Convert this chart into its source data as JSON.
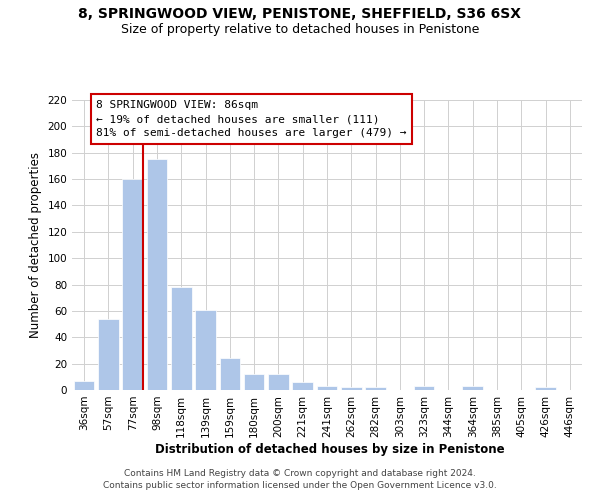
{
  "title": "8, SPRINGWOOD VIEW, PENISTONE, SHEFFIELD, S36 6SX",
  "subtitle": "Size of property relative to detached houses in Penistone",
  "xlabel": "Distribution of detached houses by size in Penistone",
  "ylabel": "Number of detached properties",
  "bar_labels": [
    "36sqm",
    "57sqm",
    "77sqm",
    "98sqm",
    "118sqm",
    "139sqm",
    "159sqm",
    "180sqm",
    "200sqm",
    "221sqm",
    "241sqm",
    "262sqm",
    "282sqm",
    "303sqm",
    "323sqm",
    "344sqm",
    "364sqm",
    "385sqm",
    "405sqm",
    "426sqm",
    "446sqm"
  ],
  "bar_values": [
    7,
    54,
    160,
    175,
    78,
    61,
    24,
    12,
    12,
    6,
    3,
    2,
    2,
    0,
    3,
    0,
    3,
    0,
    0,
    2,
    0
  ],
  "bar_color": "#aec6e8",
  "highlight_color": "#cc0000",
  "highlight_bar_index": 2,
  "ylim": [
    0,
    220
  ],
  "yticks": [
    0,
    20,
    40,
    60,
    80,
    100,
    120,
    140,
    160,
    180,
    200,
    220
  ],
  "annotation_title": "8 SPRINGWOOD VIEW: 86sqm",
  "annotation_line1": "← 19% of detached houses are smaller (111)",
  "annotation_line2": "81% of semi-detached houses are larger (479) →",
  "footer_line1": "Contains HM Land Registry data © Crown copyright and database right 2024.",
  "footer_line2": "Contains public sector information licensed under the Open Government Licence v3.0.",
  "title_fontsize": 10,
  "subtitle_fontsize": 9,
  "axis_label_fontsize": 8.5,
  "tick_fontsize": 7.5,
  "annotation_fontsize": 8,
  "footer_fontsize": 6.5
}
